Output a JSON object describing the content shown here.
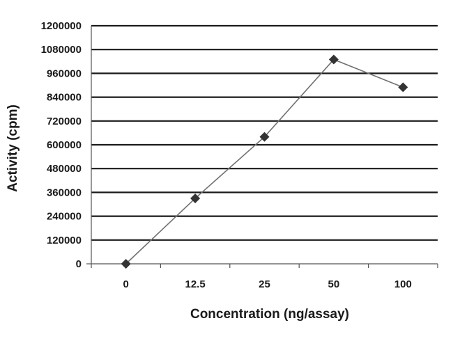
{
  "chart_data": {
    "type": "line",
    "title": "",
    "xlabel": "Concentration (ng/assay)",
    "ylabel": "Activity (cpm)",
    "categories": [
      "0",
      "12.5",
      "25",
      "50",
      "100"
    ],
    "values": [
      0,
      330000,
      640000,
      1030000,
      890000
    ],
    "ylim": [
      0,
      1200000
    ],
    "yticks": [
      "0",
      "120000",
      "240000",
      "360000",
      "480000",
      "600000",
      "720000",
      "840000",
      "960000",
      "1080000",
      "1200000"
    ],
    "grid": "horizontal",
    "legend": "none",
    "line_color": "#707070",
    "marker_color": "#333333",
    "grid_color": "#1a1a1a"
  }
}
